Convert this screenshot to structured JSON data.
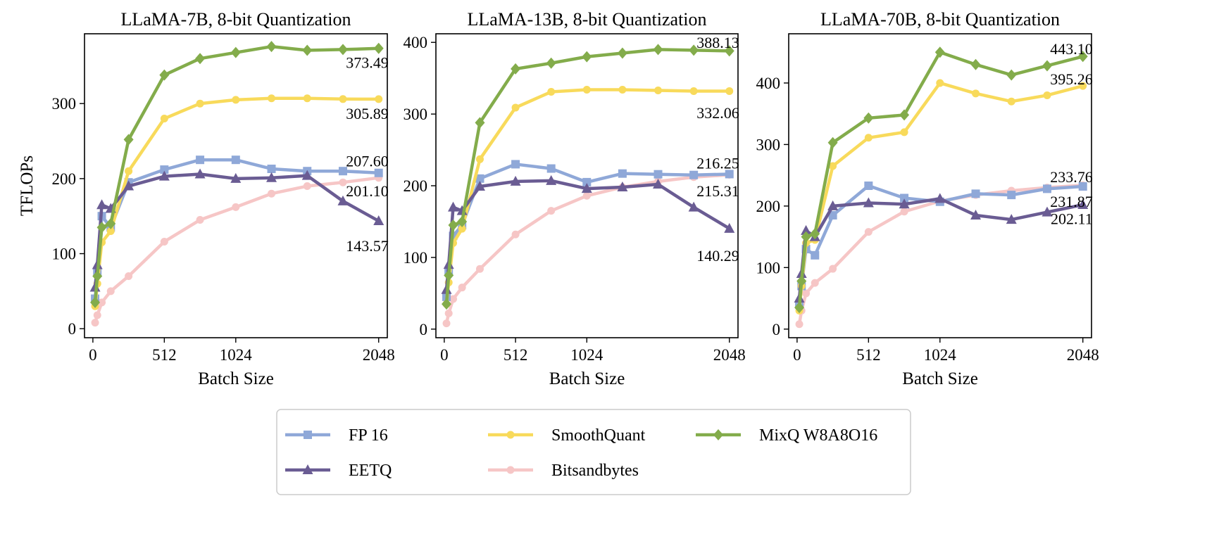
{
  "legend": {
    "entries": [
      {
        "name": "FP 16",
        "color": "#8FA8D8",
        "marker": "square"
      },
      {
        "name": "EETQ",
        "color": "#6A5C93",
        "marker": "triangle"
      },
      {
        "name": "SmoothQuant",
        "color": "#F8DA5B",
        "marker": "circle"
      },
      {
        "name": "Bitsandbytes",
        "color": "#F6C6C6",
        "marker": "circle"
      },
      {
        "name": "MixQ W8A8O16",
        "color": "#83AC4B",
        "marker": "diamond"
      }
    ],
    "placement": "bottom-center"
  },
  "chart_data": [
    {
      "type": "line",
      "title": "LLaMA-7B, 8-bit Quantization",
      "xlabel": "Batch Size",
      "ylabel": "TFLOPs",
      "xticks": [
        0,
        512,
        1024,
        2048
      ],
      "yticks": [
        0,
        100,
        200,
        300
      ],
      "xlim": [
        -60,
        2110
      ],
      "ylim": [
        -12,
        393
      ],
      "grid": false,
      "x": [
        16,
        32,
        64,
        128,
        256,
        512,
        768,
        1024,
        1280,
        1536,
        1792,
        2048
      ],
      "series": [
        {
          "name": "FP 16",
          "values": [
            40,
            75,
            150,
            135,
            195,
            212,
            225,
            225,
            213,
            210,
            210,
            207.6
          ]
        },
        {
          "name": "EETQ",
          "values": [
            55,
            85,
            165,
            160,
            190,
            203,
            206,
            200,
            201,
            204,
            170,
            143.57
          ]
        },
        {
          "name": "SmoothQuant",
          "values": [
            30,
            60,
            115,
            130,
            210,
            280,
            300,
            305,
            307,
            307,
            306,
            305.89
          ]
        },
        {
          "name": "Bitsandbytes",
          "values": [
            8,
            18,
            35,
            50,
            70,
            116,
            145,
            162,
            180,
            190,
            195,
            201.1
          ]
        },
        {
          "name": "MixQ W8A8O16",
          "values": [
            35,
            70,
            135,
            140,
            252,
            338,
            360,
            368,
            376,
            371,
            372,
            373.49
          ]
        }
      ],
      "annotations": [
        {
          "text": "373.49",
          "x": 2048,
          "y": 355
        },
        {
          "text": "305.89",
          "x": 2048,
          "y": 287
        },
        {
          "text": "207.60",
          "x": 2048,
          "y": 224
        },
        {
          "text": "201.10",
          "x": 2048,
          "y": 184
        },
        {
          "text": "143.57",
          "x": 2048,
          "y": 111
        }
      ]
    },
    {
      "type": "line",
      "title": "LLaMA-13B, 8-bit Quantization",
      "xlabel": "Batch Size",
      "ylabel": "",
      "xticks": [
        0,
        512,
        1024,
        2048
      ],
      "yticks": [
        0,
        100,
        200,
        300,
        400
      ],
      "xlim": [
        -60,
        2110
      ],
      "ylim": [
        -12,
        412
      ],
      "grid": false,
      "x": [
        16,
        32,
        64,
        128,
        256,
        512,
        768,
        1024,
        1280,
        1536,
        1792,
        2048
      ],
      "series": [
        {
          "name": "FP 16",
          "values": [
            45,
            80,
            130,
            145,
            210,
            230,
            224,
            205,
            217,
            216,
            215,
            216.25
          ]
        },
        {
          "name": "EETQ",
          "values": [
            55,
            90,
            170,
            165,
            199,
            206,
            207,
            196,
            198,
            202,
            170,
            140.29
          ]
        },
        {
          "name": "SmoothQuant",
          "values": [
            35,
            65,
            120,
            140,
            237,
            309,
            331,
            334,
            334,
            333,
            332,
            332.06
          ]
        },
        {
          "name": "Bitsandbytes",
          "values": [
            8,
            22,
            42,
            58,
            84,
            132,
            165,
            186,
            198,
            206,
            212,
            215.31
          ]
        },
        {
          "name": "MixQ W8A8O16",
          "values": [
            35,
            75,
            145,
            150,
            288,
            363,
            371,
            380,
            385,
            390,
            389,
            388.13
          ]
        }
      ],
      "annotations": [
        {
          "text": "388.13",
          "x": 2048,
          "y": 400
        },
        {
          "text": "332.06",
          "x": 2048,
          "y": 302
        },
        {
          "text": "216.25",
          "x": 2048,
          "y": 232
        },
        {
          "text": "215.31",
          "x": 2048,
          "y": 193
        },
        {
          "text": "140.29",
          "x": 2048,
          "y": 103
        }
      ]
    },
    {
      "type": "line",
      "title": "LLaMA-70B, 8-bit Quantization",
      "xlabel": "Batch Size",
      "ylabel": "",
      "xticks": [
        0,
        512,
        1024,
        2048
      ],
      "yticks": [
        0,
        100,
        200,
        300,
        400
      ],
      "xlim": [
        -60,
        2110
      ],
      "ylim": [
        -14,
        480
      ],
      "grid": false,
      "x": [
        16,
        32,
        64,
        128,
        256,
        512,
        768,
        1024,
        1280,
        1536,
        1792,
        2048
      ],
      "series": [
        {
          "name": "FP 16",
          "values": [
            40,
            70,
            130,
            120,
            185,
            233,
            213,
            207,
            220,
            218,
            228,
            231.87
          ]
        },
        {
          "name": "EETQ",
          "values": [
            50,
            90,
            160,
            150,
            200,
            205,
            203,
            212,
            185,
            178,
            190,
            202.11
          ]
        },
        {
          "name": "SmoothQuant",
          "values": [
            30,
            70,
            140,
            145,
            265,
            311,
            320,
            400,
            383,
            370,
            380,
            395.26
          ]
        },
        {
          "name": "Bitsandbytes",
          "values": [
            8,
            30,
            58,
            75,
            98,
            158,
            191,
            208,
            218,
            225,
            230,
            233.76
          ]
        },
        {
          "name": "MixQ W8A8O16",
          "values": [
            35,
            78,
            150,
            155,
            303,
            343,
            348,
            450,
            430,
            413,
            428,
            443.1
          ]
        }
      ],
      "annotations": [
        {
          "text": "443.10",
          "x": 2048,
          "y": 456
        },
        {
          "text": "395.26",
          "x": 2048,
          "y": 407
        },
        {
          "text": "233.76",
          "x": 2048,
          "y": 248
        },
        {
          "text": "231.87",
          "x": 2048,
          "y": 208
        },
        {
          "text": "202.11",
          "x": 2048,
          "y": 180
        }
      ]
    }
  ]
}
